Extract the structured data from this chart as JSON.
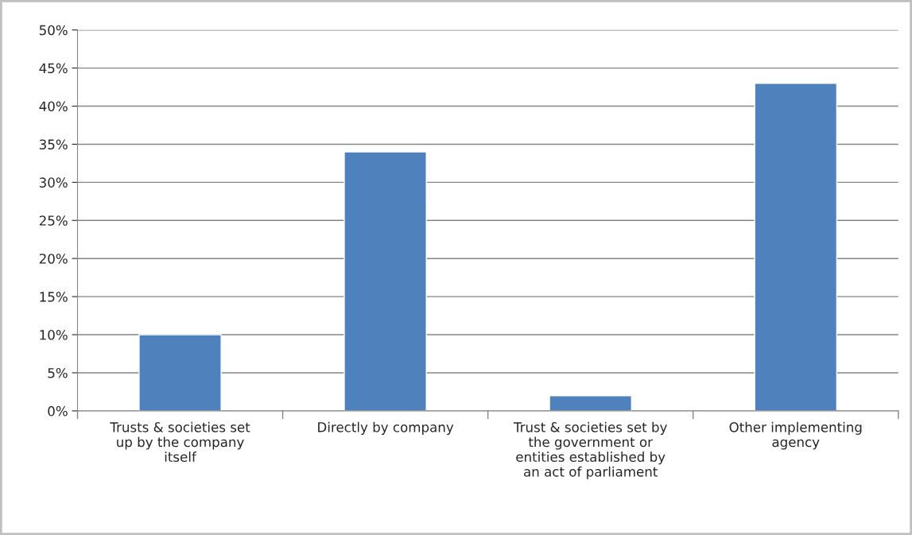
{
  "chart_data": {
    "type": "bar",
    "categories": [
      "Trusts & societies set\nup by the company\nitself",
      "Directly by company",
      "Trust & societies set by\nthe government or\nentities established by\nan act of parliament",
      "Other implementing\nagency"
    ],
    "values": [
      10,
      34,
      2,
      43
    ],
    "color": "#4f81bd",
    "ylim": [
      0,
      50
    ],
    "yticks": [
      {
        "value": 0,
        "label": "0%"
      },
      {
        "value": 5,
        "label": "5%"
      },
      {
        "value": 10,
        "label": "10%"
      },
      {
        "value": 15,
        "label": "15%"
      },
      {
        "value": 20,
        "label": "20%"
      },
      {
        "value": 25,
        "label": "25%"
      },
      {
        "value": 30,
        "label": "30%"
      },
      {
        "value": 35,
        "label": "35%"
      },
      {
        "value": 40,
        "label": "40%"
      },
      {
        "value": 45,
        "label": "45%"
      },
      {
        "value": 50,
        "label": "50%"
      }
    ],
    "grid": "y",
    "legend": false
  }
}
